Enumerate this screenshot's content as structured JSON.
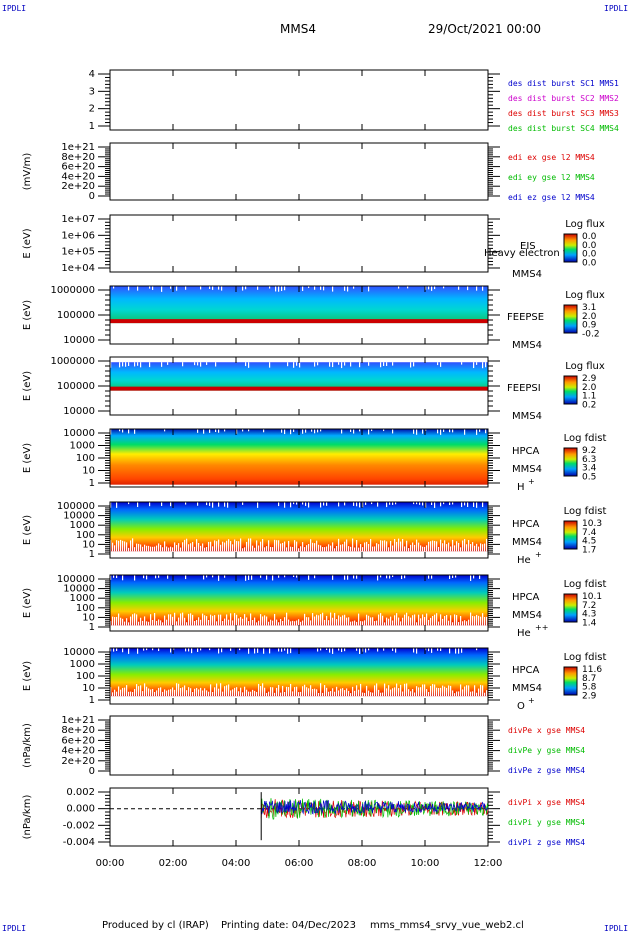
{
  "header": {
    "corner_label": "IPDLI",
    "mission": "MMS4",
    "datetime": "29/Oct/2021 00:00"
  },
  "footer": {
    "produced": "Produced by cl (IRAP)",
    "printing": "Printing date: 04/Dec/2023",
    "script": "mms_mms4_srvy_vue_web2.cl"
  },
  "colors": {
    "blue": "#0000cc",
    "magenta": "#cc00cc",
    "red": "#dd0000",
    "green": "#00bb00"
  },
  "chart_data": [
    {
      "type": "line",
      "title": "",
      "ylabel": "",
      "y_ticks": [
        "4",
        "3",
        "2",
        "1"
      ],
      "ylim": [
        0.5,
        4.5
      ],
      "legend": [
        {
          "label": "des dist burst SC1 MMS1",
          "color": "#0000cc"
        },
        {
          "label": "des dist burst SC2 MMS2",
          "color": "#cc00cc"
        },
        {
          "label": "des dist burst SC3 MMS3",
          "color": "#dd0000"
        },
        {
          "label": "des dist burst SC4 MMS4",
          "color": "#00bb00"
        }
      ],
      "series": []
    },
    {
      "type": "line",
      "ylabel": "(mV/m)",
      "y_ticks": [
        "1e+21",
        "8e+20",
        "6e+20",
        "4e+20",
        "2e+20",
        "0"
      ],
      "ylim": [
        0,
        1.05e+21
      ],
      "zero_line": true,
      "legend": [
        {
          "label": "edi ex gse l2 MMS4",
          "color": "#dd0000"
        },
        {
          "label": "edi ey gse l2 MMS4",
          "color": "#00bb00"
        },
        {
          "label": "edi ez gse l2 MMS4",
          "color": "#0000cc"
        }
      ],
      "series": []
    },
    {
      "type": "heatmap",
      "ylabel": "E (eV)",
      "y_ticks": [
        "1e+07",
        "1e+06",
        "1e+05",
        "1e+04"
      ],
      "scale": "log",
      "ylim": [
        10000,
        10000000
      ],
      "instrument": "EIS",
      "overlay_text": "Heavy electron tof",
      "spacecraft": "MMS4",
      "colorbar": {
        "title": "Log flux",
        "ticks": [
          "0.0",
          "0.0",
          "0.0",
          "0.0"
        ]
      },
      "filled": false
    },
    {
      "type": "heatmap",
      "ylabel": "E (eV)",
      "y_ticks": [
        "1000000",
        "100000",
        "10000"
      ],
      "scale": "log",
      "ylim": [
        10000,
        1000000
      ],
      "instrument": "FEEPSE",
      "spacecraft": "MMS4",
      "colorbar": {
        "title": "Log flux",
        "ticks": [
          "3.1",
          "2.0",
          "0.9",
          "-0.2"
        ]
      },
      "filled": true,
      "fill_range": [
        0.0,
        0.64
      ],
      "bottom_band": "red"
    },
    {
      "type": "heatmap",
      "ylabel": "E (eV)",
      "y_ticks": [
        "1000000",
        "100000",
        "10000"
      ],
      "scale": "log",
      "ylim": [
        10000,
        1000000
      ],
      "instrument": "FEEPSI",
      "spacecraft": "MMS4",
      "colorbar": {
        "title": "Log flux",
        "ticks": [
          "2.9",
          "2.0",
          "1.1",
          "0.2"
        ]
      },
      "filled": true,
      "fill_range": [
        0.09,
        0.58
      ],
      "bottom_band": "red"
    },
    {
      "type": "heatmap",
      "ylabel": "E (eV)",
      "y_ticks": [
        "10000",
        "1000",
        "100",
        "10",
        "1"
      ],
      "scale": "log",
      "ylim": [
        1,
        30000
      ],
      "instrument": "HPCA",
      "spacecraft": "MMS4",
      "species": "H",
      "species_sup": "+",
      "colorbar": {
        "title": "Log fdist",
        "ticks": [
          "9.2",
          "6.3",
          "3.4",
          "0.5"
        ]
      },
      "filled": true,
      "fill_range": [
        0.0,
        0.96
      ]
    },
    {
      "type": "heatmap",
      "ylabel": "E (eV)",
      "y_ticks": [
        "100000",
        "10000",
        "1000",
        "100",
        "10",
        "1"
      ],
      "scale": "log",
      "ylim": [
        1,
        100000
      ],
      "instrument": "HPCA",
      "spacecraft": "MMS4",
      "species": "He",
      "species_sup": "+",
      "colorbar": {
        "title": "Log fdist",
        "ticks": [
          "10.3",
          "7.4",
          "4.5",
          "1.7"
        ]
      },
      "filled": true,
      "fill_range": [
        0.0,
        0.88
      ],
      "ragged_bottom": true
    },
    {
      "type": "heatmap",
      "ylabel": "E (eV)",
      "y_ticks": [
        "100000",
        "10000",
        "1000",
        "100",
        "10",
        "1"
      ],
      "scale": "log",
      "ylim": [
        1,
        100000
      ],
      "instrument": "HPCA",
      "spacecraft": "MMS4",
      "species": "He",
      "species_sup": "++",
      "colorbar": {
        "title": "Log fdist",
        "ticks": [
          "10.1",
          "7.2",
          "4.3",
          "1.4"
        ]
      },
      "filled": true,
      "fill_range": [
        0.0,
        0.9
      ],
      "ragged_bottom": true
    },
    {
      "type": "heatmap",
      "ylabel": "E (eV)",
      "y_ticks": [
        "10000",
        "1000",
        "100",
        "10",
        "1"
      ],
      "scale": "log",
      "ylim": [
        1,
        30000
      ],
      "instrument": "HPCA",
      "spacecraft": "MMS4",
      "species": "O",
      "species_sup": "+",
      "colorbar": {
        "title": "Log fdist",
        "ticks": [
          "11.6",
          "8.7",
          "5.8",
          "2.9"
        ]
      },
      "filled": true,
      "fill_range": [
        0.0,
        0.86
      ],
      "ragged_bottom": true
    },
    {
      "type": "line",
      "ylabel": "(nPa/km)",
      "y_ticks": [
        "1e+21",
        "8e+20",
        "6e+20",
        "4e+20",
        "2e+20",
        "0"
      ],
      "ylim": [
        0,
        1.05e+21
      ],
      "zero_line": true,
      "legend": [
        {
          "label": "divPe x gse MMS4",
          "color": "#dd0000"
        },
        {
          "label": "divPe y gse MMS4",
          "color": "#00bb00"
        },
        {
          "label": "divPe z gse MMS4",
          "color": "#0000cc"
        }
      ],
      "series": []
    },
    {
      "type": "line",
      "ylabel": "(nPa/km)",
      "y_ticks": [
        "0.002",
        "0.000",
        "-0.002",
        "-0.004"
      ],
      "ylim": [
        -0.0045,
        0.0025
      ],
      "zero_line": true,
      "data_start_hour": 4.8,
      "legend": [
        {
          "label": "divPi x gse MMS4",
          "color": "#dd0000"
        },
        {
          "label": "divPi y gse MMS4",
          "color": "#00bb00"
        },
        {
          "label": "divPi z gse MMS4",
          "color": "#0000cc"
        }
      ],
      "series": [
        {
          "name": "divPi x gse MMS4",
          "color": "#dd0000",
          "amplitude": 0.0012
        },
        {
          "name": "divPi y gse MMS4",
          "color": "#00bb00",
          "amplitude": 0.0013
        },
        {
          "name": "divPi z gse MMS4",
          "color": "#0000cc",
          "amplitude": 0.0009
        }
      ]
    }
  ],
  "x_axis": {
    "ticks": [
      "00:00",
      "02:00",
      "04:00",
      "06:00",
      "08:00",
      "10:00",
      "12:00"
    ],
    "range_hours": [
      0,
      12
    ]
  }
}
